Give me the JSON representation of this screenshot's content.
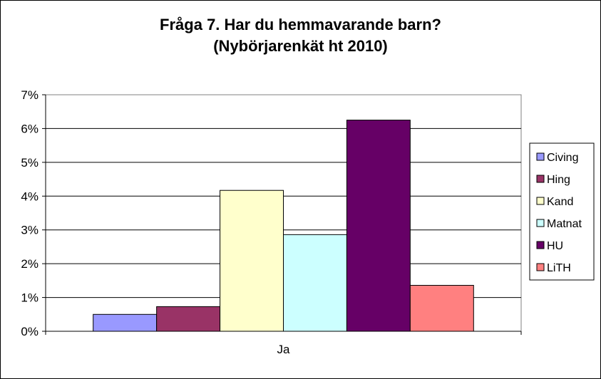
{
  "chart_data": {
    "type": "bar",
    "title_line1": "Fråga 7. Har du hemmavarande barn?",
    "title_line2": "(Nybörjarenkät ht 2010)",
    "categories": [
      "Ja"
    ],
    "y_tick_labels": [
      "0%",
      "1%",
      "2%",
      "3%",
      "4%",
      "5%",
      "6%",
      "7%"
    ],
    "ylim": [
      0,
      0.07
    ],
    "grid": true,
    "legend_position": "right",
    "series": [
      {
        "name": "Civing",
        "values": [
          0.005
        ],
        "color": "#9999FF"
      },
      {
        "name": "Hing",
        "values": [
          0.0073
        ],
        "color": "#993366"
      },
      {
        "name": "Kand",
        "values": [
          0.0417
        ],
        "color": "#FFFFCC"
      },
      {
        "name": "Matnat",
        "values": [
          0.0286
        ],
        "color": "#CCFFFF"
      },
      {
        "name": "HU",
        "values": [
          0.0625
        ],
        "color": "#660066"
      },
      {
        "name": "LiTH",
        "values": [
          0.0136
        ],
        "color": "#FF8080"
      }
    ]
  }
}
